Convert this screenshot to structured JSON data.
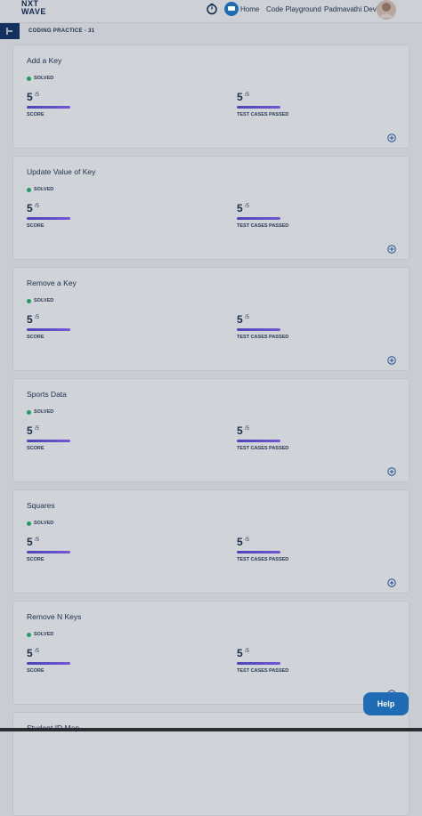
{
  "header": {
    "logo_top": "NXT",
    "logo_bottom": "WAVE",
    "nav": [
      "Home",
      "Code Playground"
    ],
    "user": "Padmavathi Devi"
  },
  "breadcrumb": "CODING PRACTICE - 31",
  "cards": [
    {
      "title": "Add a Key",
      "status": "SOLVED",
      "score": 5,
      "score_total": "/5",
      "score_label": "SCORE",
      "tests": 5,
      "tests_total": "/5",
      "tests_label": "TEST CASES PASSED"
    },
    {
      "title": "Update Value of Key",
      "status": "SOLVED",
      "score": 5,
      "score_total": "/5",
      "score_label": "SCORE",
      "tests": 5,
      "tests_total": "/5",
      "tests_label": "TEST CASES PASSED"
    },
    {
      "title": "Remove a Key",
      "status": "SOLVED",
      "score": 5,
      "score_total": "/5",
      "score_label": "SCORE",
      "tests": 5,
      "tests_total": "/5",
      "tests_label": "TEST CASES PASSED"
    },
    {
      "title": "Sports Data",
      "status": "SOLVED",
      "score": 5,
      "score_total": "/5",
      "score_label": "SCORE",
      "tests": 5,
      "tests_total": "/5",
      "tests_label": "TEST CASES PASSED"
    },
    {
      "title": "Squares",
      "status": "SOLVED",
      "score": 5,
      "score_total": "/5",
      "score_label": "SCORE",
      "tests": 5,
      "tests_total": "/5",
      "tests_label": "TEST CASES PASSED"
    },
    {
      "title": "Remove N Keys",
      "status": "SOLVED",
      "score": 5,
      "score_total": "/5",
      "score_label": "SCORE",
      "tests": 5,
      "tests_total": "/5",
      "tests_label": "TEST CASES PASSED"
    },
    {
      "title": "Student ID Map"
    }
  ],
  "help": "Help"
}
